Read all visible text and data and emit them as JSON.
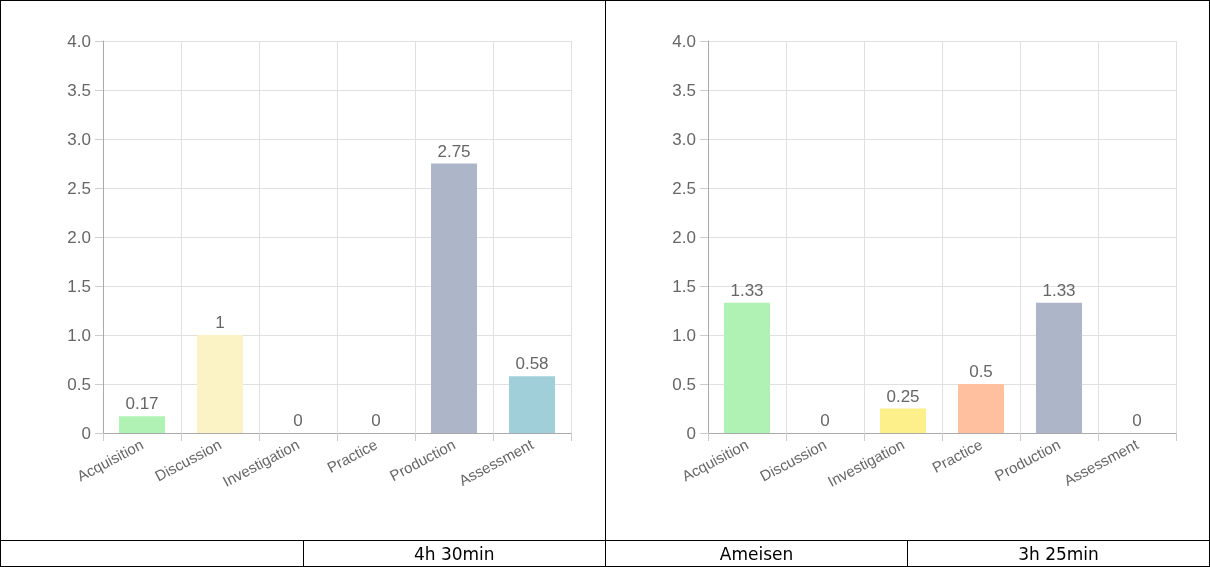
{
  "chart_data": [
    {
      "type": "bar",
      "categories": [
        "Acquisition",
        "Discussion",
        "Investigation",
        "Practice",
        "Production",
        "Assessment"
      ],
      "values": [
        0.17,
        1,
        0,
        0,
        2.75,
        0.58
      ],
      "colors": [
        "#b0f2b4",
        "#fbf3c6",
        "#fdf08a",
        "#ffc09f",
        "#adb5c8",
        "#a0ced9"
      ],
      "ylim": [
        0,
        4
      ],
      "yticks": [
        0,
        {
          "value": 0.5,
          "label": "0.5"
        },
        {
          "value": 1,
          "label": "1.0"
        },
        {
          "value": 1.5,
          "label": "1.5"
        },
        {
          "value": 2,
          "label": "2.0"
        },
        {
          "value": 2.5,
          "label": "2.5"
        },
        {
          "value": 3,
          "label": "3.0"
        },
        {
          "value": 3.5,
          "label": "3.5"
        },
        {
          "value": 4,
          "label": "4.0"
        }
      ],
      "grid": true,
      "data_labels": true,
      "annotations": [
        "4h 30min"
      ]
    },
    {
      "type": "bar",
      "categories": [
        "Acquisition",
        "Discussion",
        "Investigation",
        "Practice",
        "Production",
        "Assessment"
      ],
      "values": [
        1.33,
        0,
        0.25,
        0.5,
        1.33,
        0
      ],
      "colors": [
        "#b0f2b4",
        "#fbf3c6",
        "#fdf08a",
        "#ffc09f",
        "#adb5c8",
        "#a0ced9"
      ],
      "ylim": [
        0,
        4
      ],
      "yticks": [
        0,
        {
          "value": 0.5,
          "label": "0.5"
        },
        {
          "value": 1,
          "label": "1.0"
        },
        {
          "value": 1.5,
          "label": "1.5"
        },
        {
          "value": 2,
          "label": "2.0"
        },
        {
          "value": 2.5,
          "label": "2.5"
        },
        {
          "value": 3,
          "label": "3.0"
        },
        {
          "value": 3.5,
          "label": "3.5"
        },
        {
          "value": 4,
          "label": "4.0"
        }
      ],
      "grid": true,
      "data_labels": true,
      "annotations": [
        "Ameisen",
        "3h 25min"
      ]
    }
  ]
}
